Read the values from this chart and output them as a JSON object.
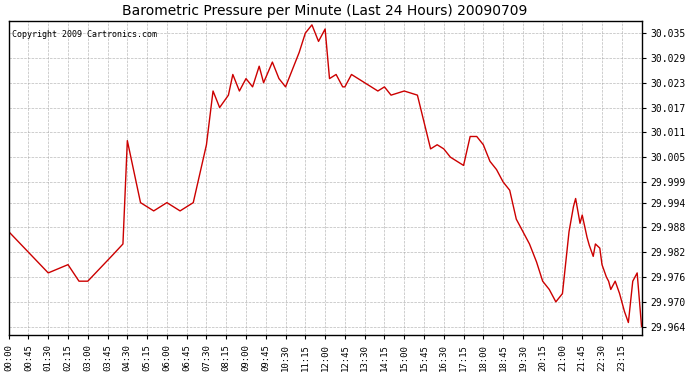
{
  "title": "Barometric Pressure per Minute (Last 24 Hours) 20090709",
  "copyright": "Copyright 2009 Cartronics.com",
  "line_color": "#cc0000",
  "background_color": "#ffffff",
  "grid_color": "#aaaaaa",
  "yticks": [
    29.964,
    29.97,
    29.976,
    29.982,
    29.988,
    29.994,
    29.999,
    30.005,
    30.011,
    30.017,
    30.023,
    30.029,
    30.035
  ],
  "ylim": [
    29.962,
    30.038
  ],
  "xtick_labels": [
    "00:00",
    "00:45",
    "01:30",
    "02:15",
    "03:00",
    "03:45",
    "04:30",
    "05:15",
    "06:00",
    "06:45",
    "07:30",
    "08:15",
    "09:00",
    "09:45",
    "10:30",
    "11:15",
    "12:00",
    "12:45",
    "13:30",
    "14:15",
    "15:00",
    "15:45",
    "16:30",
    "17:15",
    "18:00",
    "18:45",
    "19:30",
    "20:15",
    "21:00",
    "21:45",
    "22:30",
    "23:15"
  ],
  "waypoints_x": [
    0,
    45,
    90,
    135,
    160,
    180,
    225,
    260,
    270,
    300,
    315,
    330,
    360,
    390,
    420,
    450,
    465,
    480,
    500,
    510,
    525,
    540,
    555,
    570,
    580,
    600,
    615,
    630,
    645,
    660,
    675,
    690,
    705,
    720,
    730,
    745,
    760,
    765,
    780,
    810,
    840,
    855,
    870,
    900,
    930,
    960,
    975,
    990,
    1005,
    1020,
    1035,
    1050,
    1065,
    1080,
    1095,
    1110,
    1125,
    1140,
    1155,
    1170,
    1185,
    1200,
    1215,
    1230,
    1245,
    1260,
    1275,
    1285,
    1290,
    1300,
    1305,
    1315,
    1320,
    1330,
    1335,
    1345,
    1350,
    1360,
    1365,
    1370,
    1380,
    1390,
    1400,
    1410,
    1420,
    1430,
    1440
  ],
  "waypoints_y": [
    29.987,
    29.982,
    29.977,
    29.979,
    29.975,
    29.975,
    29.98,
    29.984,
    30.009,
    29.994,
    29.993,
    29.992,
    29.994,
    29.992,
    29.994,
    30.008,
    30.021,
    30.017,
    30.02,
    30.025,
    30.021,
    30.024,
    30.022,
    30.027,
    30.023,
    30.028,
    30.024,
    30.022,
    30.026,
    30.03,
    30.035,
    30.037,
    30.033,
    30.036,
    30.024,
    30.025,
    30.022,
    30.022,
    30.025,
    30.023,
    30.021,
    30.022,
    30.02,
    30.021,
    30.02,
    30.007,
    30.008,
    30.007,
    30.005,
    30.004,
    30.003,
    30.01,
    30.01,
    30.008,
    30.004,
    30.002,
    29.999,
    29.997,
    29.99,
    29.987,
    29.984,
    29.98,
    29.975,
    29.973,
    29.97,
    29.972,
    29.987,
    29.993,
    29.995,
    29.989,
    29.991,
    29.986,
    29.984,
    29.981,
    29.984,
    29.983,
    29.979,
    29.976,
    29.975,
    29.973,
    29.975,
    29.972,
    29.968,
    29.965,
    29.975,
    29.977,
    29.964
  ]
}
